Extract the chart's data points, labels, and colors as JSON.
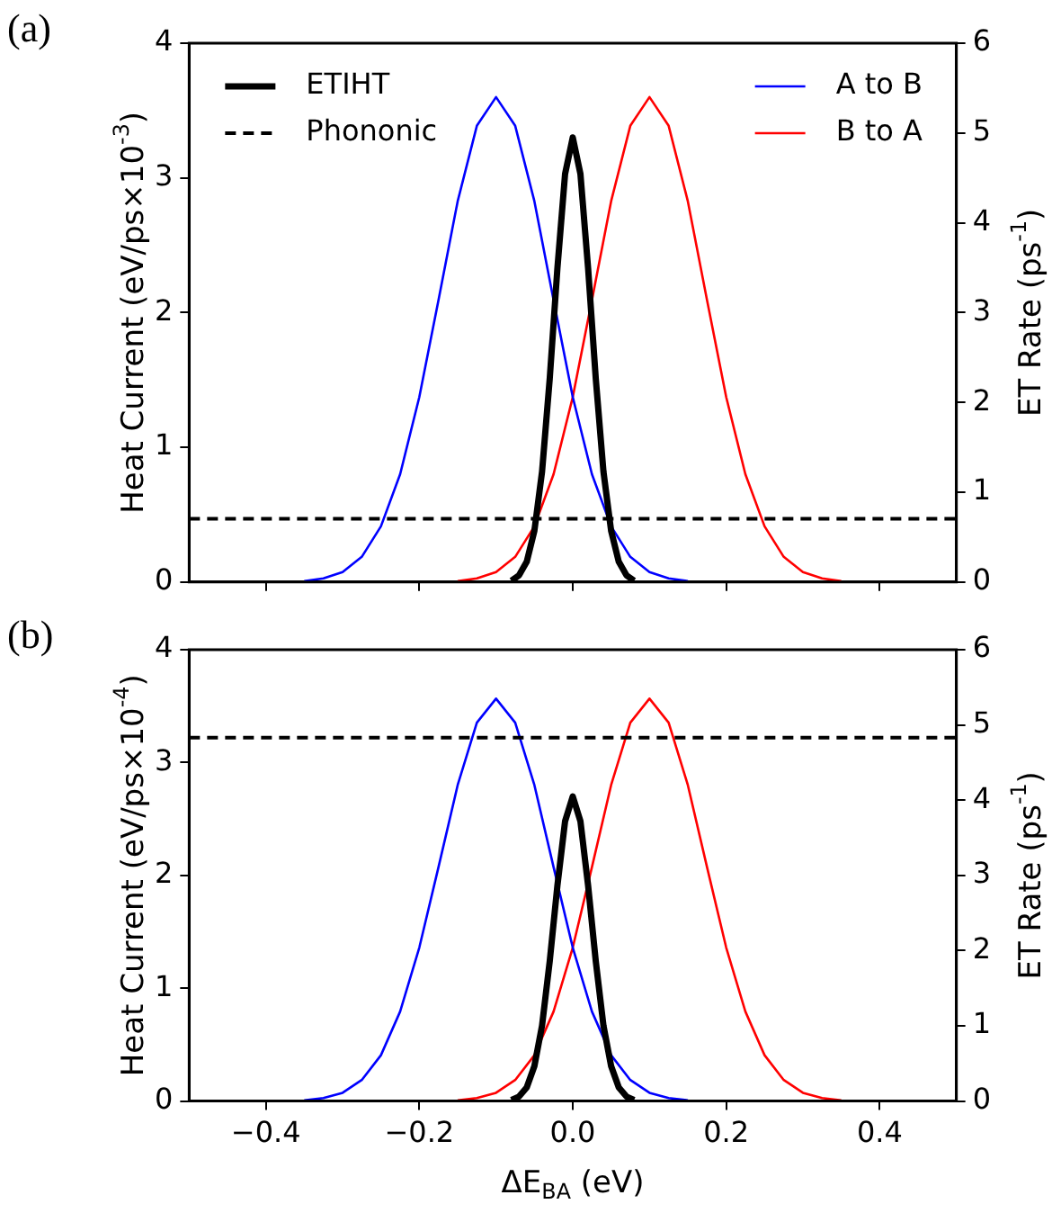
{
  "chart_data": [
    {
      "type": "line",
      "title": "(a)",
      "ylabel": "Heat Current (eV/ps×10$^{-3}$)",
      "y2label": "ET Rate (ps$^{-1}$)",
      "legend": "top",
      "tick_labels": "y",
      "xlim": [
        -0.5,
        0.5
      ],
      "xticks": [
        -0.4,
        -0.2,
        0,
        0.2,
        0.4
      ],
      "ylim": [
        0,
        4
      ],
      "yticks": [
        0,
        1,
        2,
        3,
        4
      ],
      "y2lim": [
        0,
        6
      ],
      "y2ticks": [
        0,
        1,
        2,
        3,
        4,
        5,
        6
      ],
      "series": [
        {
          "name": "ETIHT",
          "color": "#000000",
          "x": [
            -0.08,
            -0.07,
            -0.06,
            -0.05,
            -0.04,
            -0.03,
            -0.02,
            -0.01,
            0,
            0.01,
            0.02,
            0.03,
            0.04,
            0.05,
            0.06,
            0.07,
            0.08
          ],
          "values": [
            0.01,
            0.05,
            0.15,
            0.38,
            0.82,
            1.51,
            2.33,
            3.03,
            3.3,
            3.03,
            2.33,
            1.51,
            0.82,
            0.38,
            0.15,
            0.05,
            0.01
          ]
        },
        {
          "name": "Phononic",
          "color": "#000000",
          "line_style": "dashed",
          "x": [
            -0.5,
            0.5
          ],
          "values": [
            0.47,
            0.47
          ]
        },
        {
          "name": "A to B",
          "color": "#0000ff",
          "axis": "y2",
          "x": [
            -0.35,
            -0.325,
            -0.3,
            -0.275,
            -0.25,
            -0.225,
            -0.2,
            -0.175,
            -0.15,
            -0.125,
            -0.1,
            -0.075,
            -0.05,
            -0.025,
            0,
            0.025,
            0.05,
            0.075,
            0.1,
            0.125,
            0.15
          ],
          "values": [
            0.01,
            0.04,
            0.11,
            0.28,
            0.62,
            1.2,
            2.06,
            3.14,
            4.24,
            5.08,
            5.4,
            5.08,
            4.24,
            3.14,
            2.06,
            1.2,
            0.62,
            0.28,
            0.11,
            0.04,
            0.01
          ]
        },
        {
          "name": "B to A",
          "color": "#ff0000",
          "axis": "y2",
          "x": [
            -0.15,
            -0.125,
            -0.1,
            -0.075,
            -0.05,
            -0.025,
            0,
            0.025,
            0.05,
            0.075,
            0.1,
            0.125,
            0.15,
            0.175,
            0.2,
            0.225,
            0.25,
            0.275,
            0.3,
            0.325,
            0.35
          ],
          "values": [
            0.01,
            0.04,
            0.11,
            0.28,
            0.62,
            1.2,
            2.06,
            3.14,
            4.24,
            5.08,
            5.4,
            5.08,
            4.24,
            3.14,
            2.06,
            1.2,
            0.62,
            0.28,
            0.11,
            0.04,
            0.01
          ]
        }
      ]
    },
    {
      "type": "line",
      "title": "(b)",
      "xlabel": "ΔE$_{BA}$ (eV)",
      "ylabel": "Heat Current (eV/ps×10$^{-4}$)",
      "y2label": "ET Rate (ps$^{-1}$)",
      "xlim": [
        -0.5,
        0.5
      ],
      "xticks": [
        -0.4,
        -0.2,
        {
          "value": 0,
          "label": "0.0"
        },
        0.2,
        0.4
      ],
      "ylim": [
        0,
        4
      ],
      "yticks": [
        0,
        1,
        2,
        3,
        4
      ],
      "y2lim": [
        0,
        6
      ],
      "y2ticks": [
        0,
        1,
        2,
        3,
        4,
        5,
        6
      ],
      "series": [
        {
          "color": "#000000",
          "x": [
            -0.08,
            -0.07,
            -0.06,
            -0.05,
            -0.04,
            -0.03,
            -0.02,
            -0.01,
            0,
            0.01,
            0.02,
            0.03,
            0.04,
            0.05,
            0.06,
            0.07,
            0.08
          ],
          "values": [
            0.01,
            0.04,
            0.12,
            0.31,
            0.67,
            1.24,
            1.91,
            2.48,
            2.7,
            2.48,
            1.91,
            1.24,
            0.67,
            0.31,
            0.12,
            0.04,
            0.01
          ]
        },
        {
          "color": "#000000",
          "line_style": "dashed",
          "x": [
            -0.5,
            0.5
          ],
          "values": [
            3.22,
            3.22
          ]
        },
        {
          "color": "#0000ff",
          "axis": "y2",
          "x": [
            -0.35,
            -0.325,
            -0.3,
            -0.275,
            -0.25,
            -0.225,
            -0.2,
            -0.175,
            -0.15,
            -0.125,
            -0.1,
            -0.075,
            -0.05,
            -0.025,
            0,
            0.025,
            0.05,
            0.075,
            0.1,
            0.125,
            0.15
          ],
          "values": [
            0.01,
            0.04,
            0.11,
            0.28,
            0.61,
            1.19,
            2.04,
            3.11,
            4.2,
            5.03,
            5.35,
            5.03,
            4.2,
            3.11,
            2.04,
            1.19,
            0.61,
            0.28,
            0.11,
            0.04,
            0.01
          ]
        },
        {
          "color": "#ff0000",
          "axis": "y2",
          "x": [
            -0.15,
            -0.125,
            -0.1,
            -0.075,
            -0.05,
            -0.025,
            0,
            0.025,
            0.05,
            0.075,
            0.1,
            0.125,
            0.15,
            0.175,
            0.2,
            0.225,
            0.25,
            0.275,
            0.3,
            0.325,
            0.35
          ],
          "values": [
            0.01,
            0.04,
            0.11,
            0.28,
            0.61,
            1.19,
            2.04,
            3.11,
            4.2,
            5.03,
            5.35,
            5.03,
            4.2,
            3.11,
            2.04,
            1.19,
            0.61,
            0.28,
            0.11,
            0.04,
            0.01
          ]
        }
      ]
    }
  ]
}
